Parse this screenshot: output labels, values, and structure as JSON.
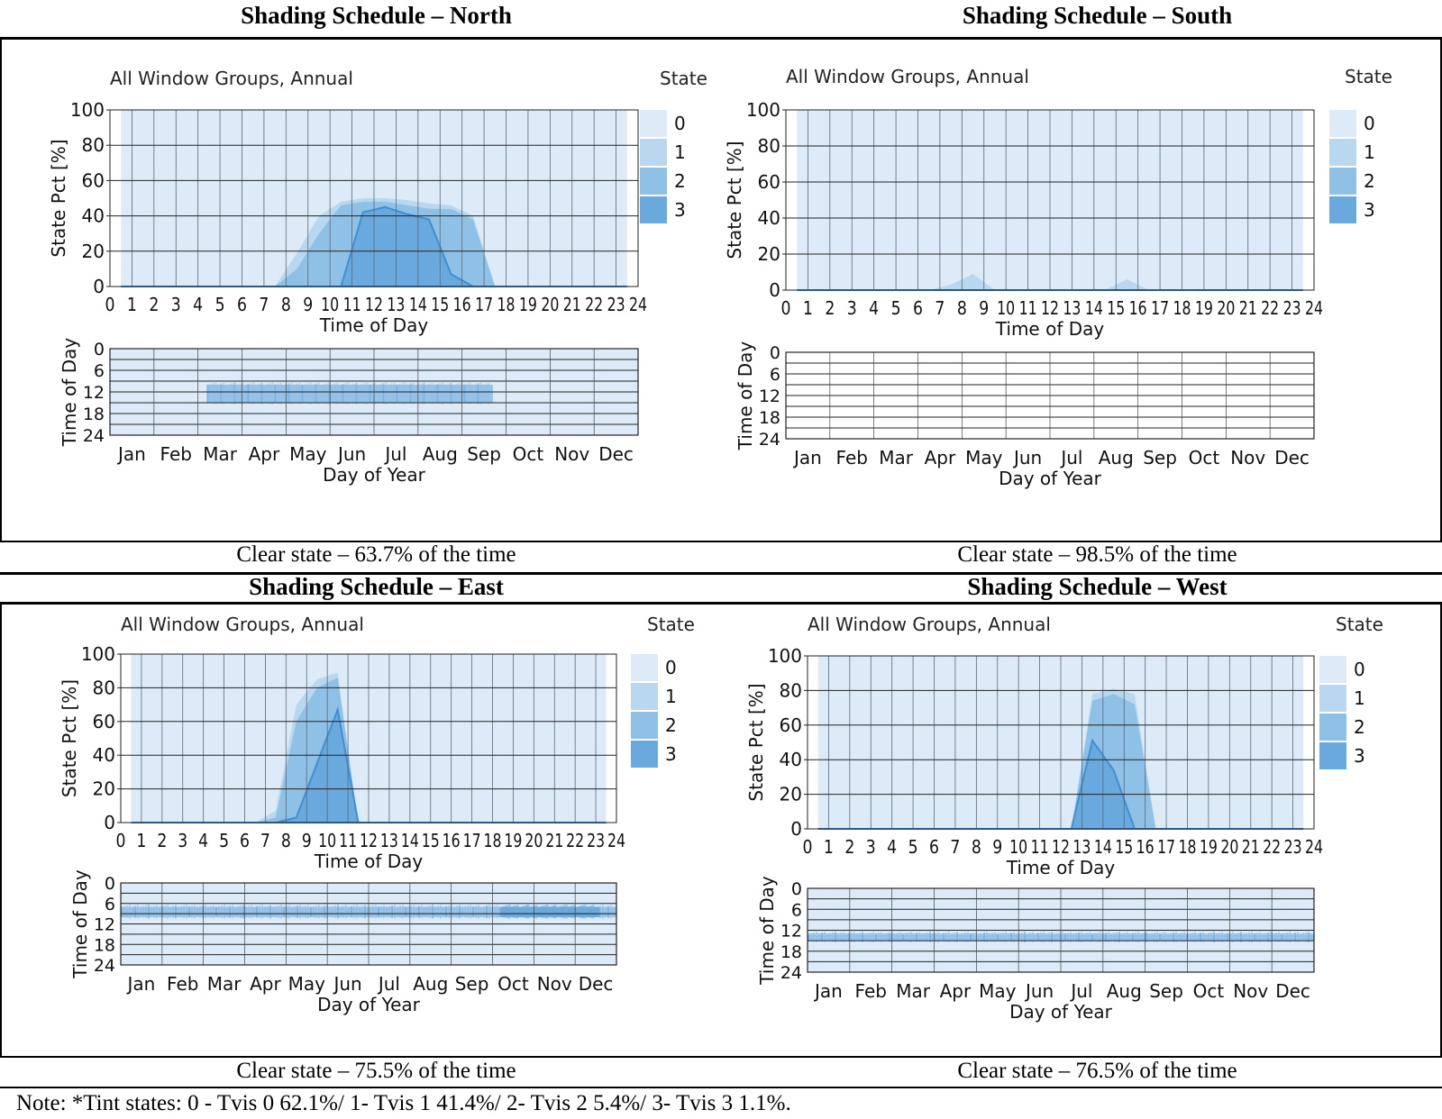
{
  "note": "Note: *Tint states: 0 - Tvis 0 62.1%/ 1- Tvis 1 41.4%/ 2- Tvis 2 5.4%/ 3- Tvis 3 1.1%.",
  "colors": {
    "state0": "#dcebf7",
    "state1": "#b9d8f0",
    "state2": "#8fc0e6",
    "state3": "#6aa9dd",
    "line3": "#3f8fd2",
    "grid": "#222222"
  },
  "panels": [
    {
      "id": "north",
      "header": "Shading Schedule – North",
      "clear_state": "Clear state – 63.7% of the time"
    },
    {
      "id": "south",
      "header": "Shading Schedule – South",
      "clear_state": "Clear state – 98.5% of the time"
    },
    {
      "id": "east",
      "header": "Shading Schedule – East",
      "clear_state": "Clear state – 75.5% of the time"
    },
    {
      "id": "west",
      "header": "Shading Schedule – West",
      "clear_state": "Clear state – 76.5% of the time"
    }
  ],
  "chart_data": [
    {
      "id": "north",
      "type": "area",
      "title": "All Window Groups, Annual",
      "legend_title": "State",
      "legend": [
        "0",
        "1",
        "2",
        "3"
      ],
      "xlabel": "Time of Day",
      "ylabel": "State Pct [%]",
      "xlim": [
        0,
        24
      ],
      "ylim": [
        0,
        100
      ],
      "xticks": [
        "0",
        "1",
        "2",
        "3",
        "4",
        "5",
        "6",
        "7",
        "8",
        "9",
        "10",
        "11",
        "12",
        "13",
        "14",
        "15",
        "16",
        "17",
        "18",
        "19",
        "20",
        "21",
        "22",
        "23",
        "24"
      ],
      "yticks": [
        "0",
        "20",
        "40",
        "60",
        "80",
        "100"
      ],
      "x": [
        0.5,
        1.5,
        2.5,
        3.5,
        4.5,
        5.5,
        6.5,
        7.5,
        8.5,
        9.5,
        10.5,
        11.5,
        12.5,
        13.5,
        14.5,
        15.5,
        16.5,
        17.5,
        18.5,
        19.5,
        20.5,
        21.5,
        22.5,
        23.5
      ],
      "series": [
        {
          "name": "1",
          "values": [
            0,
            0,
            0,
            0,
            0,
            0,
            0,
            0,
            19,
            40,
            48,
            50,
            50,
            49,
            47,
            46,
            40,
            0,
            0,
            0,
            0,
            0,
            0,
            0
          ]
        },
        {
          "name": "2",
          "values": [
            0,
            0,
            0,
            0,
            0,
            0,
            0,
            0,
            10,
            30,
            46,
            48,
            48,
            46,
            44,
            44,
            38,
            0,
            0,
            0,
            0,
            0,
            0,
            0
          ]
        },
        {
          "name": "3",
          "values": [
            0,
            0,
            0,
            0,
            0,
            0,
            0,
            0,
            0,
            0,
            0,
            42,
            45,
            41,
            38,
            7,
            0,
            0,
            0,
            0,
            0,
            0,
            0,
            0
          ]
        }
      ],
      "heatmap": {
        "xlabel": "Day of Year",
        "ylabel": "Time of Day",
        "months": [
          "Jan",
          "Feb",
          "Mar",
          "Apr",
          "May",
          "Jun",
          "Jul",
          "Aug",
          "Sep",
          "Oct",
          "Nov",
          "Dec"
        ],
        "yticks": [
          "0",
          "6",
          "12",
          "18",
          "24"
        ],
        "bands": [
          {
            "start_month": 2.2,
            "end_month": 8.7,
            "from_hour": 10,
            "to_hour": 15,
            "state": 2
          }
        ]
      }
    },
    {
      "id": "south",
      "type": "area",
      "title": "All Window Groups, Annual",
      "legend_title": "State",
      "legend": [
        "0",
        "1",
        "2",
        "3"
      ],
      "xlabel": "Time of Day",
      "ylabel": "State Pct [%]",
      "xlim": [
        0,
        24
      ],
      "ylim": [
        0,
        100
      ],
      "xticks": [
        "0",
        "1",
        "2",
        "3",
        "4",
        "5",
        "6",
        "7",
        "8",
        "9",
        "10",
        "11",
        "12",
        "13",
        "14",
        "15",
        "16",
        "17",
        "18",
        "19",
        "20",
        "21",
        "22",
        "23",
        "24"
      ],
      "yticks": [
        "0",
        "20",
        "40",
        "60",
        "80",
        "100"
      ],
      "x": [
        0.5,
        1.5,
        2.5,
        3.5,
        4.5,
        5.5,
        6.5,
        7.5,
        8.5,
        9.5,
        10.5,
        11.5,
        12.5,
        13.5,
        14.5,
        15.5,
        16.5,
        17.5,
        18.5,
        19.5,
        20.5,
        21.5,
        22.5,
        23.5
      ],
      "series": [
        {
          "name": "1",
          "values": [
            0,
            0,
            0,
            0,
            0,
            0,
            0,
            3,
            9,
            0,
            0,
            0,
            0,
            0,
            0,
            6,
            0,
            0,
            0,
            0,
            0,
            0,
            0,
            0
          ]
        },
        {
          "name": "2",
          "values": [
            0,
            0,
            0,
            0,
            0,
            0,
            0,
            0,
            0,
            0,
            0,
            0,
            0,
            0,
            0,
            0,
            0,
            0,
            0,
            0,
            0,
            0,
            0,
            0
          ]
        },
        {
          "name": "3",
          "values": [
            0,
            0,
            0,
            0,
            0,
            0,
            0,
            0,
            0,
            0,
            0,
            0,
            0,
            0,
            0,
            0,
            0,
            0,
            0,
            0,
            0,
            0,
            0,
            0
          ]
        }
      ],
      "heatmap": {
        "xlabel": "Day of Year",
        "ylabel": "Time of Day",
        "months": [
          "Jan",
          "Feb",
          "Mar",
          "Apr",
          "May",
          "Jun",
          "Jul",
          "Aug",
          "Sep",
          "Oct",
          "Nov",
          "Dec"
        ],
        "yticks": [
          "0",
          "6",
          "12",
          "18",
          "24"
        ],
        "bands": []
      }
    },
    {
      "id": "east",
      "type": "area",
      "title": "All Window Groups, Annual",
      "legend_title": "State",
      "legend": [
        "0",
        "1",
        "2",
        "3"
      ],
      "xlabel": "Time of Day",
      "ylabel": "State Pct [%]",
      "xlim": [
        0,
        24
      ],
      "ylim": [
        0,
        100
      ],
      "xticks": [
        "0",
        "1",
        "2",
        "3",
        "4",
        "5",
        "6",
        "7",
        "8",
        "9",
        "10",
        "11",
        "12",
        "13",
        "14",
        "15",
        "16",
        "17",
        "18",
        "19",
        "20",
        "21",
        "22",
        "23",
        "24"
      ],
      "yticks": [
        "0",
        "20",
        "40",
        "60",
        "80",
        "100"
      ],
      "x": [
        0.5,
        1.5,
        2.5,
        3.5,
        4.5,
        5.5,
        6.5,
        7.5,
        8.5,
        9.5,
        10.5,
        11.5,
        12.5,
        13.5,
        14.5,
        15.5,
        16.5,
        17.5,
        18.5,
        19.5,
        20.5,
        21.5,
        22.5,
        23.5
      ],
      "series": [
        {
          "name": "1",
          "values": [
            0,
            0,
            0,
            0,
            0,
            0,
            0,
            7,
            70,
            85,
            89,
            0,
            0,
            0,
            0,
            0,
            0,
            0,
            0,
            0,
            0,
            0,
            0,
            0
          ]
        },
        {
          "name": "2",
          "values": [
            0,
            0,
            0,
            0,
            0,
            0,
            0,
            3,
            60,
            80,
            86,
            0,
            0,
            0,
            0,
            0,
            0,
            0,
            0,
            0,
            0,
            0,
            0,
            0
          ]
        },
        {
          "name": "3",
          "values": [
            0,
            0,
            0,
            0,
            0,
            0,
            0,
            0,
            3,
            35,
            67,
            0,
            0,
            0,
            0,
            0,
            0,
            0,
            0,
            0,
            0,
            0,
            0,
            0
          ]
        }
      ],
      "heatmap": {
        "xlabel": "Day of Year",
        "ylabel": "Time of Day",
        "months": [
          "Jan",
          "Feb",
          "Mar",
          "Apr",
          "May",
          "Jun",
          "Jul",
          "Aug",
          "Sep",
          "Oct",
          "Nov",
          "Dec"
        ],
        "yticks": [
          "0",
          "6",
          "12",
          "18",
          "24"
        ],
        "bands": [
          {
            "start_month": 0.0,
            "end_month": 12.0,
            "from_hour": 7,
            "to_hour": 10,
            "state": 2
          },
          {
            "start_month": 9.2,
            "end_month": 11.6,
            "from_hour": 7,
            "to_hour": 10,
            "state": 3
          }
        ]
      }
    },
    {
      "id": "west",
      "type": "area",
      "title": "All Window Groups, Annual",
      "legend_title": "State",
      "legend": [
        "0",
        "1",
        "2",
        "3"
      ],
      "xlabel": "Time of Day",
      "ylabel": "State Pct [%]",
      "xlim": [
        0,
        24
      ],
      "ylim": [
        0,
        100
      ],
      "xticks": [
        "0",
        "1",
        "2",
        "3",
        "4",
        "5",
        "6",
        "7",
        "8",
        "9",
        "10",
        "11",
        "12",
        "13",
        "14",
        "15",
        "16",
        "17",
        "18",
        "19",
        "20",
        "21",
        "22",
        "23",
        "24"
      ],
      "yticks": [
        "0",
        "20",
        "40",
        "60",
        "80",
        "100"
      ],
      "x": [
        0.5,
        1.5,
        2.5,
        3.5,
        4.5,
        5.5,
        6.5,
        7.5,
        8.5,
        9.5,
        10.5,
        11.5,
        12.5,
        13.5,
        14.5,
        15.5,
        16.5,
        17.5,
        18.5,
        19.5,
        20.5,
        21.5,
        22.5,
        23.5
      ],
      "series": [
        {
          "name": "1",
          "values": [
            0,
            0,
            0,
            0,
            0,
            0,
            0,
            0,
            0,
            0,
            0,
            0,
            0,
            78,
            81,
            78,
            0,
            0,
            0,
            0,
            0,
            0,
            0,
            0
          ]
        },
        {
          "name": "2",
          "values": [
            0,
            0,
            0,
            0,
            0,
            0,
            0,
            0,
            0,
            0,
            0,
            0,
            0,
            74,
            78,
            72,
            0,
            0,
            0,
            0,
            0,
            0,
            0,
            0
          ]
        },
        {
          "name": "3",
          "values": [
            0,
            0,
            0,
            0,
            0,
            0,
            0,
            0,
            0,
            0,
            0,
            0,
            0,
            51,
            34,
            0,
            0,
            0,
            0,
            0,
            0,
            0,
            0,
            0
          ]
        }
      ],
      "heatmap": {
        "xlabel": "Day of Year",
        "ylabel": "Time of Day",
        "months": [
          "Jan",
          "Feb",
          "Mar",
          "Apr",
          "May",
          "Jun",
          "Jul",
          "Aug",
          "Sep",
          "Oct",
          "Nov",
          "Dec"
        ],
        "yticks": [
          "0",
          "6",
          "12",
          "18",
          "24"
        ],
        "bands": [
          {
            "start_month": 0.0,
            "end_month": 12.0,
            "from_hour": 13,
            "to_hour": 15,
            "state": 2
          }
        ]
      }
    }
  ]
}
